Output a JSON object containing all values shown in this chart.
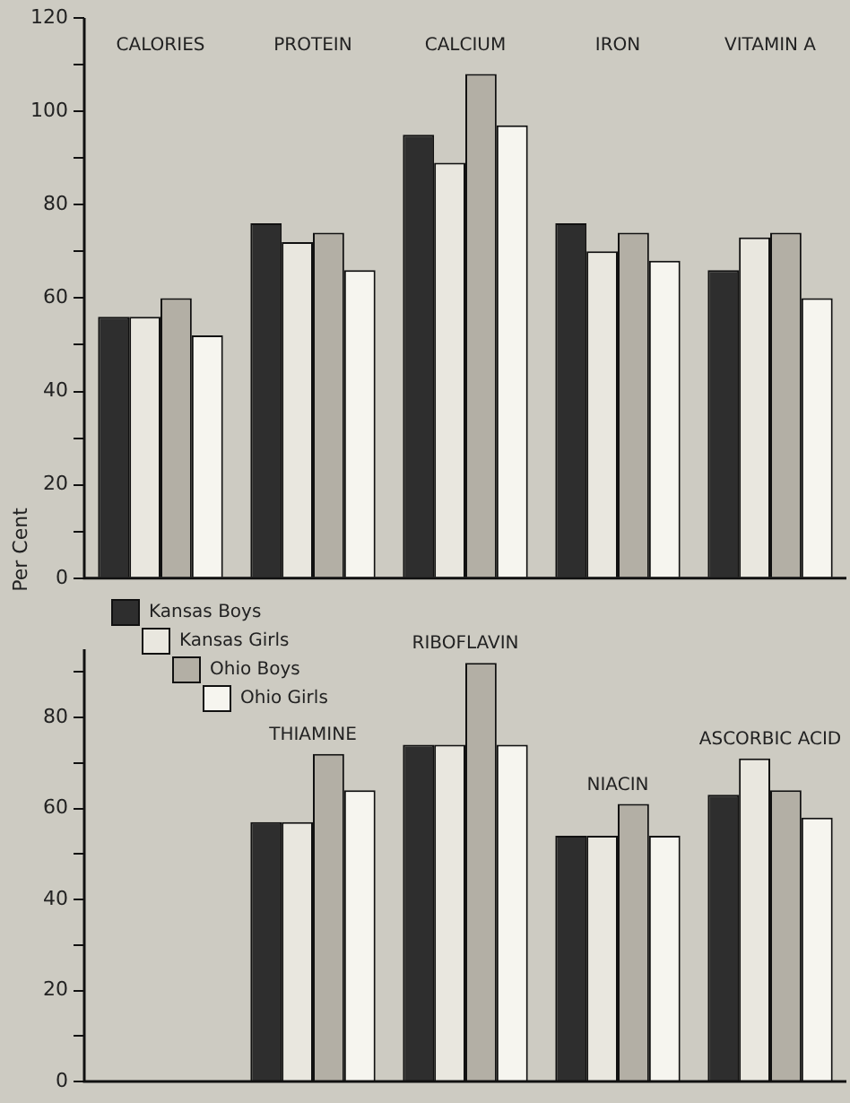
{
  "chart_data": [
    {
      "type": "bar",
      "ylabel": "Per Cent",
      "categories": [
        "CALORIES",
        "PROTEIN",
        "CALCIUM",
        "IRON",
        "VITAMIN A"
      ],
      "series": [
        {
          "color": "#2e2e2e",
          "values": [
            56,
            76,
            95,
            76,
            66
          ]
        },
        {
          "color": "#e9e7df",
          "values": [
            56,
            72,
            89,
            70,
            73
          ]
        },
        {
          "color": "#b3afa5",
          "values": [
            60,
            74,
            108,
            74,
            74
          ]
        },
        {
          "color": "#f6f5ef",
          "values": [
            52,
            66,
            97,
            68,
            60
          ]
        }
      ],
      "ylim": [
        0,
        120
      ],
      "yticks": [
        0,
        {
          "value": 10,
          "label": null
        },
        20,
        {
          "value": 30,
          "label": null
        },
        40,
        {
          "value": 50,
          "label": null
        },
        60,
        {
          "value": 70,
          "label": null
        },
        80,
        {
          "value": 90,
          "label": null
        },
        100,
        {
          "value": 110,
          "label": null
        },
        120
      ],
      "grid": false,
      "legend": false
    },
    {
      "type": "bar",
      "categories": [
        null,
        "THIAMINE",
        "RIBOFLAVIN",
        "NIACIN",
        "ASCORBIC ACID"
      ],
      "series": [
        {
          "name": "Kansas Boys",
          "color": "#2e2e2e",
          "values": [
            null,
            57,
            74,
            54,
            63
          ]
        },
        {
          "name": "Kansas Girls",
          "color": "#e9e7df",
          "values": [
            null,
            57,
            74,
            54,
            71
          ]
        },
        {
          "name": "Ohio Boys",
          "color": "#b3afa5",
          "values": [
            null,
            72,
            92,
            61,
            64
          ]
        },
        {
          "name": "Ohio Girls",
          "color": "#f6f5ef",
          "values": [
            null,
            64,
            74,
            54,
            58
          ]
        }
      ],
      "ylim": [
        0,
        95
      ],
      "yticks": [
        0,
        {
          "value": 10,
          "label": null
        },
        20,
        {
          "value": 30,
          "label": null
        },
        40,
        {
          "value": 50,
          "label": null
        },
        60,
        {
          "value": 70,
          "label": null
        },
        80,
        {
          "value": 90,
          "label": null
        }
      ],
      "grid": false,
      "legend": "top left"
    }
  ]
}
